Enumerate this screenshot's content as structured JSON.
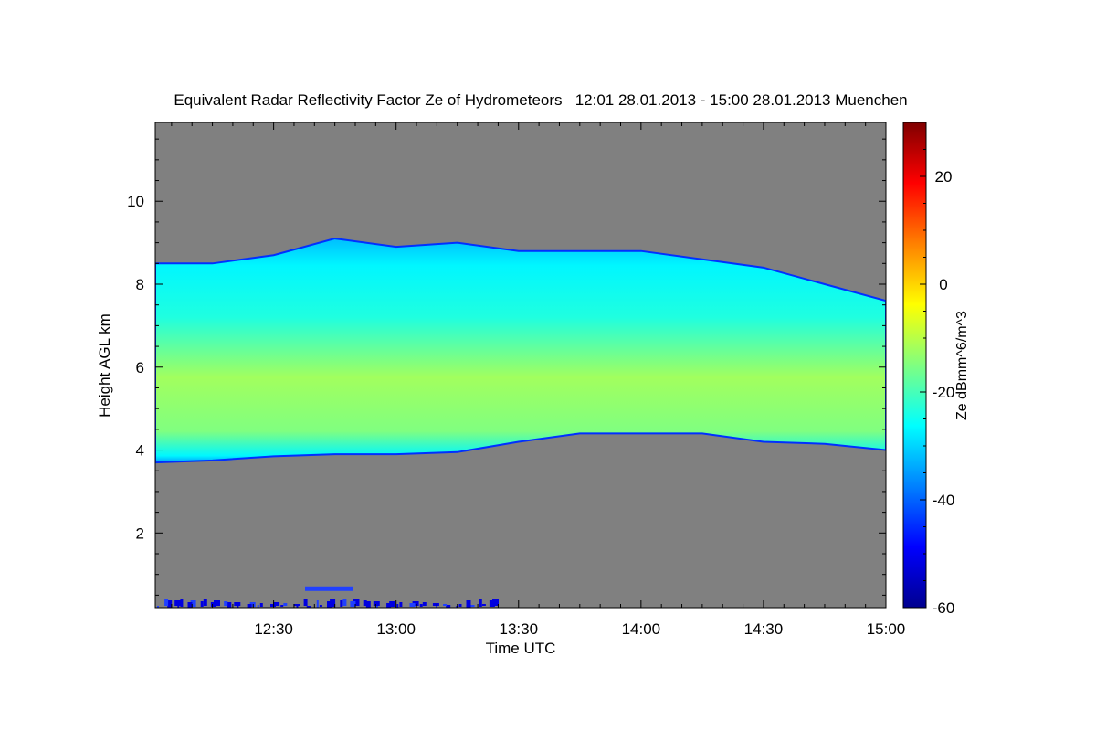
{
  "chart_data": {
    "type": "heatmap",
    "title": "Equivalent Radar Reflectivity Factor Ze of Hydrometeors   12:01 28.01.2013 - 15:00 28.01.2013 Muenchen",
    "xlabel": "Time UTC",
    "ylabel": "Height AGL km",
    "colorbar_label": "Ze dBmm^6/m^3",
    "x_range": [
      "12:01",
      "15:00"
    ],
    "x_ticks": [
      "12:30",
      "13:00",
      "13:30",
      "14:00",
      "14:30",
      "15:00"
    ],
    "y_range": [
      0.2,
      11.9
    ],
    "y_ticks": [
      "2",
      "4",
      "6",
      "8",
      "10"
    ],
    "z_range": [
      -60,
      30
    ],
    "colorbar_ticks": [
      "-60",
      "-40",
      "-20",
      "0",
      "20"
    ],
    "no_data_color": "#808080",
    "colormap": [
      "#00008f",
      "#0000ff",
      "#0080ff",
      "#00ffff",
      "#80ff80",
      "#ffff00",
      "#ff8000",
      "#ff0000",
      "#800000"
    ],
    "cloud_layer": {
      "time": [
        "12:01",
        "12:15",
        "12:30",
        "12:45",
        "13:00",
        "13:15",
        "13:30",
        "13:45",
        "14:00",
        "14:15",
        "14:30",
        "14:45",
        "15:00"
      ],
      "base_km": [
        3.7,
        3.75,
        3.85,
        3.9,
        3.9,
        3.95,
        4.2,
        4.4,
        4.4,
        4.4,
        4.2,
        4.15,
        4.0
      ],
      "top_km": [
        8.5,
        8.5,
        8.7,
        9.1,
        8.9,
        9.0,
        8.8,
        8.8,
        8.8,
        8.6,
        8.4,
        8.0,
        7.6
      ],
      "core_dbz": -12,
      "edge_dbz": -35
    },
    "weak_echo_near_ground_km": [
      0.2,
      0.8
    ]
  }
}
